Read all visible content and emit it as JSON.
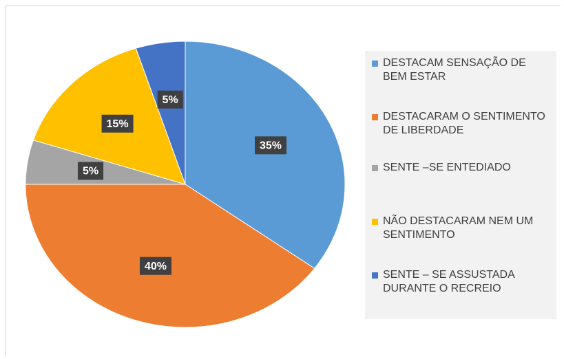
{
  "chart_data": {
    "type": "pie",
    "categories": [
      "DESTACAM SENSAÇÃO DE BEM ESTAR",
      "DESTACARAM O SENTIMENTO DE LIBERDADE",
      "SENTE –SE ENTEDIADO",
      "NÃO DESTACARAM NEM UM SENTIMENTO",
      "SENTE – SE ASSUSTADA DURANTE O RECREIO"
    ],
    "values": [
      35,
      40,
      5,
      15,
      5
    ],
    "value_labels": [
      "35%",
      "40%",
      "5%",
      "15%",
      "5%"
    ],
    "colors": [
      "#5b9bd5",
      "#ed7d31",
      "#a5a5a5",
      "#ffc000",
      "#4472c4"
    ],
    "legend": "right"
  }
}
